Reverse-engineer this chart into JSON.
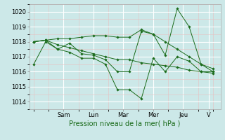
{
  "bg_color": "#cce8e8",
  "grid_color": "#ffffff",
  "minor_grid_color": "#e8c0c0",
  "line_color": "#1a6b1a",
  "marker_color": "#1a6b1a",
  "xlabel": "Pression niveau de la mer( hPa )",
  "ylim": [
    1013.5,
    1020.5
  ],
  "yticks": [
    1014,
    1015,
    1016,
    1017,
    1018,
    1019,
    1020
  ],
  "day_labels": [
    "Sam",
    "Lun",
    "Mar",
    "Mer",
    "Jeu",
    "V"
  ],
  "day_positions": [
    2.5,
    4.5,
    6.5,
    8.5,
    10.5,
    12.2
  ],
  "series": [
    [
      1016.5,
      1018.0,
      1017.5,
      1017.3,
      1016.9,
      1016.9,
      1016.5,
      1014.8,
      1014.8,
      1014.2,
      1016.9,
      1016.0,
      1017.0,
      1016.7,
      1016.0,
      1016.0
    ],
    [
      1018.0,
      1018.1,
      1017.5,
      1017.9,
      1017.2,
      1017.1,
      1016.8,
      1016.0,
      1016.0,
      1018.7,
      1018.5,
      1017.1,
      1020.2,
      1019.0,
      1016.5,
      1016.0
    ],
    [
      1018.0,
      1018.1,
      1018.2,
      1018.2,
      1018.3,
      1018.4,
      1018.4,
      1018.3,
      1018.3,
      1018.8,
      1018.5,
      1018.0,
      1017.5,
      1017.0,
      1016.5,
      1016.2
    ],
    [
      1018.0,
      1018.1,
      1017.8,
      1017.6,
      1017.4,
      1017.2,
      1017.0,
      1016.8,
      1016.8,
      1016.6,
      1016.5,
      1016.4,
      1016.3,
      1016.1,
      1016.0,
      1015.9
    ]
  ],
  "xlim": [
    0.2,
    13.0
  ],
  "xtick_fontsize": 6,
  "ytick_fontsize": 6,
  "xlabel_fontsize": 7
}
